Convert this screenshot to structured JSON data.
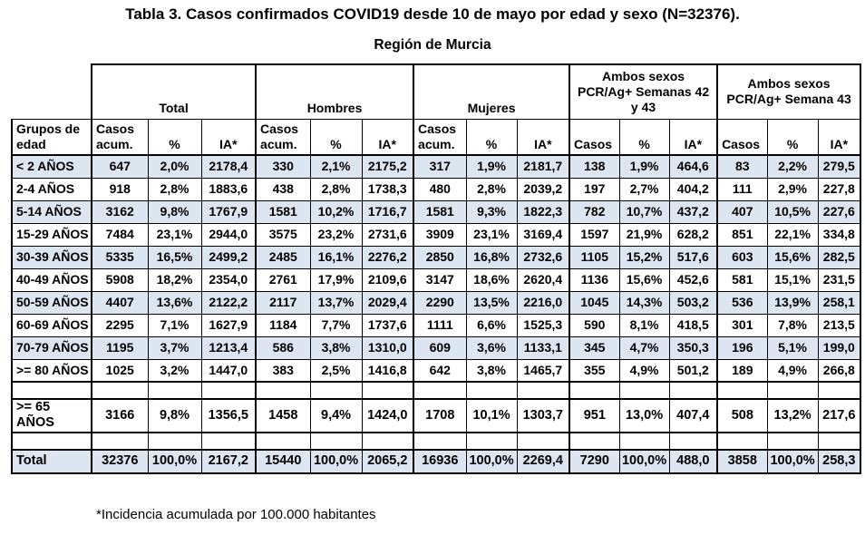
{
  "title": "Tabla 3. Casos confirmados COVID19 desde 10 de mayo por edad y sexo (N=32376).",
  "subtitle": "Región de Murcia",
  "footnote": "*Incidencia acumulada por 100.000 habitantes",
  "colors": {
    "row_highlight": "#dce6f1",
    "border": "#000000",
    "background": "#ffffff"
  },
  "table": {
    "row_header_label": "Grupos de edad",
    "groups": [
      {
        "label": "Total",
        "columns": [
          "Casos acum.",
          "%",
          "IA*"
        ]
      },
      {
        "label": "Hombres",
        "columns": [
          "Casos acum.",
          "%",
          "IA*"
        ]
      },
      {
        "label": "Mujeres",
        "columns": [
          "Casos acum.",
          "%",
          "IA*"
        ]
      },
      {
        "label": "Ambos sexos\nPCR/Ag+ Semanas 42\ny 43",
        "columns": [
          "Casos",
          "%",
          "IA*"
        ]
      },
      {
        "label": "Ambos sexos\nPCR/Ag+ Semana 43",
        "columns": [
          "Casos",
          "%",
          "IA*"
        ]
      }
    ],
    "rows": [
      {
        "label": "< 2 AÑOS",
        "values": [
          "647",
          "2,0%",
          "2178,4",
          "330",
          "2,1%",
          "2175,2",
          "317",
          "1,9%",
          "2181,7",
          "138",
          "1,9%",
          "464,6",
          "83",
          "2,2%",
          "279,5"
        ]
      },
      {
        "label": "2-4 AÑOS",
        "values": [
          "918",
          "2,8%",
          "1883,6",
          "438",
          "2,8%",
          "1738,3",
          "480",
          "2,8%",
          "2039,2",
          "197",
          "2,7%",
          "404,2",
          "111",
          "2,9%",
          "227,8"
        ]
      },
      {
        "label": "5-14 AÑOS",
        "values": [
          "3162",
          "9,8%",
          "1767,9",
          "1581",
          "10,2%",
          "1716,7",
          "1581",
          "9,3%",
          "1822,3",
          "782",
          "10,7%",
          "437,2",
          "407",
          "10,5%",
          "227,6"
        ]
      },
      {
        "label": "15-29 AÑOS",
        "values": [
          "7484",
          "23,1%",
          "2944,0",
          "3575",
          "23,2%",
          "2731,6",
          "3909",
          "23,1%",
          "3169,4",
          "1597",
          "21,9%",
          "628,2",
          "851",
          "22,1%",
          "334,8"
        ]
      },
      {
        "label": "30-39 AÑOS",
        "values": [
          "5335",
          "16,5%",
          "2499,2",
          "2485",
          "16,1%",
          "2276,2",
          "2850",
          "16,8%",
          "2732,6",
          "1105",
          "15,2%",
          "517,6",
          "603",
          "15,6%",
          "282,5"
        ]
      },
      {
        "label": "40-49 AÑOS",
        "values": [
          "5908",
          "18,2%",
          "2354,0",
          "2761",
          "17,9%",
          "2109,6",
          "3147",
          "18,6%",
          "2620,4",
          "1136",
          "15,6%",
          "452,6",
          "581",
          "15,1%",
          "231,5"
        ]
      },
      {
        "label": "50-59 AÑOS",
        "values": [
          "4407",
          "13,6%",
          "2122,2",
          "2117",
          "13,7%",
          "2029,4",
          "2290",
          "13,5%",
          "2216,0",
          "1045",
          "14,3%",
          "503,2",
          "536",
          "13,9%",
          "258,1"
        ]
      },
      {
        "label": "60-69 AÑOS",
        "values": [
          "2295",
          "7,1%",
          "1627,9",
          "1184",
          "7,7%",
          "1737,6",
          "1111",
          "6,6%",
          "1525,3",
          "590",
          "8,1%",
          "418,5",
          "301",
          "7,8%",
          "213,5"
        ]
      },
      {
        "label": "70-79 AÑOS",
        "values": [
          "1195",
          "3,7%",
          "1213,4",
          "586",
          "3,8%",
          "1310,0",
          "609",
          "3,6%",
          "1133,1",
          "345",
          "4,7%",
          "350,3",
          "196",
          "5,1%",
          "199,0"
        ]
      },
      {
        "label": ">= 80 AÑOS",
        "values": [
          "1025",
          "3,2%",
          "1447,0",
          "383",
          "2,5%",
          "1416,8",
          "642",
          "3,8%",
          "1465,7",
          "355",
          "4,9%",
          "501,2",
          "189",
          "4,9%",
          "266,8"
        ]
      }
    ],
    "summary_rows": [
      {
        "label": ">= 65 AÑOS",
        "values": [
          "3166",
          "9,8%",
          "1356,5",
          "1458",
          "9,4%",
          "1424,0",
          "1708",
          "10,1%",
          "1303,7",
          "951",
          "13,0%",
          "407,4",
          "508",
          "13,2%",
          "217,6"
        ]
      },
      {
        "label": "Total",
        "values": [
          "32376",
          "100,0%",
          "2167,2",
          "15440",
          "100,0%",
          "2065,2",
          "16936",
          "100,0%",
          "2269,4",
          "7290",
          "100,0%",
          "488,0",
          "3858",
          "100,0%",
          "258,3"
        ]
      }
    ]
  }
}
